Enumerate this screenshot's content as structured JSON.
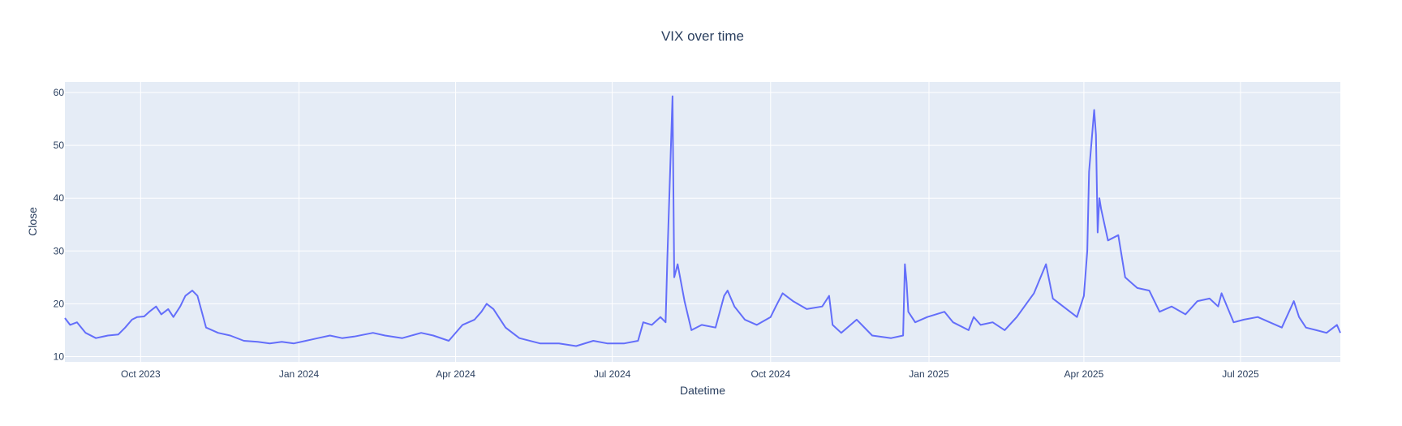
{
  "chart_data": {
    "type": "line",
    "title": "VIX over time",
    "xlabel": "Datetime",
    "ylabel": "Close",
    "x_range": [
      "2023-08-18",
      "2025-08-28"
    ],
    "ylim": [
      9,
      62
    ],
    "x_ticks": [
      {
        "date": "2023-10-01",
        "label": "Oct 2023"
      },
      {
        "date": "2024-01-01",
        "label": "Jan 2024"
      },
      {
        "date": "2024-04-01",
        "label": "Apr 2024"
      },
      {
        "date": "2024-07-01",
        "label": "Jul 2024"
      },
      {
        "date": "2024-10-01",
        "label": "Oct 2024"
      },
      {
        "date": "2025-01-01",
        "label": "Jan 2025"
      },
      {
        "date": "2025-04-01",
        "label": "Apr 2025"
      },
      {
        "date": "2025-07-01",
        "label": "Jul 2025"
      }
    ],
    "y_ticks": [
      10,
      20,
      30,
      40,
      50,
      60
    ],
    "grid": true,
    "legend": "none",
    "colors": {
      "line": "#636efa",
      "plot_bg": "#e5ecf6",
      "grid": "#ffffff",
      "text": "#2a3f5f"
    },
    "series": [
      {
        "x": [
          "2023-08-18",
          "2023-08-21",
          "2023-08-25",
          "2023-08-30",
          "2023-09-05",
          "2023-09-12",
          "2023-09-18",
          "2023-09-22",
          "2023-09-26",
          "2023-09-29",
          "2023-10-03",
          "2023-10-06",
          "2023-10-10",
          "2023-10-13",
          "2023-10-17",
          "2023-10-20",
          "2023-10-24",
          "2023-10-27",
          "2023-10-31",
          "2023-11-03",
          "2023-11-08",
          "2023-11-15",
          "2023-11-22",
          "2023-11-30",
          "2023-12-08",
          "2023-12-15",
          "2023-12-22",
          "2023-12-29",
          "2024-01-05",
          "2024-01-12",
          "2024-01-19",
          "2024-01-26",
          "2024-02-02",
          "2024-02-13",
          "2024-02-20",
          "2024-03-01",
          "2024-03-12",
          "2024-03-19",
          "2024-03-28",
          "2024-04-05",
          "2024-04-12",
          "2024-04-16",
          "2024-04-19",
          "2024-04-23",
          "2024-04-30",
          "2024-05-08",
          "2024-05-20",
          "2024-05-31",
          "2024-06-10",
          "2024-06-20",
          "2024-06-28",
          "2024-07-08",
          "2024-07-16",
          "2024-07-19",
          "2024-07-24",
          "2024-07-29",
          "2024-08-01",
          "2024-08-02",
          "2024-08-05",
          "2024-08-06",
          "2024-08-08",
          "2024-08-12",
          "2024-08-16",
          "2024-08-22",
          "2024-08-30",
          "2024-09-04",
          "2024-09-06",
          "2024-09-10",
          "2024-09-16",
          "2024-09-23",
          "2024-10-01",
          "2024-10-04",
          "2024-10-08",
          "2024-10-14",
          "2024-10-22",
          "2024-10-31",
          "2024-11-04",
          "2024-11-06",
          "2024-11-11",
          "2024-11-20",
          "2024-11-29",
          "2024-12-10",
          "2024-12-17",
          "2024-12-18",
          "2024-12-19",
          "2024-12-20",
          "2024-12-24",
          "2024-12-31",
          "2025-01-10",
          "2025-01-15",
          "2025-01-24",
          "2025-01-27",
          "2025-01-31",
          "2025-02-07",
          "2025-02-14",
          "2025-02-21",
          "2025-03-03",
          "2025-03-10",
          "2025-03-14",
          "2025-03-20",
          "2025-03-28",
          "2025-04-01",
          "2025-04-03",
          "2025-04-04",
          "2025-04-07",
          "2025-04-08",
          "2025-04-09",
          "2025-04-10",
          "2025-04-11",
          "2025-04-15",
          "2025-04-21",
          "2025-04-25",
          "2025-05-02",
          "2025-05-09",
          "2025-05-15",
          "2025-05-22",
          "2025-05-30",
          "2025-06-06",
          "2025-06-13",
          "2025-06-18",
          "2025-06-20",
          "2025-06-27",
          "2025-07-03",
          "2025-07-11",
          "2025-07-18",
          "2025-07-25",
          "2025-08-01",
          "2025-08-04",
          "2025-08-08",
          "2025-08-14",
          "2025-08-20",
          "2025-08-26",
          "2025-08-28"
        ],
        "y": [
          17.3,
          16.0,
          16.5,
          14.5,
          13.5,
          14.0,
          14.2,
          15.5,
          17.0,
          17.5,
          17.6,
          18.5,
          19.5,
          18.0,
          19.0,
          17.5,
          19.5,
          21.5,
          22.5,
          21.5,
          15.5,
          14.5,
          14.0,
          13.0,
          12.8,
          12.5,
          12.8,
          12.5,
          13.0,
          13.5,
          14.0,
          13.5,
          13.8,
          14.5,
          14.0,
          13.5,
          14.5,
          14.0,
          13.0,
          16.0,
          17.0,
          18.5,
          20.0,
          19.0,
          15.5,
          13.5,
          12.5,
          12.5,
          12.0,
          13.0,
          12.5,
          12.5,
          13.0,
          16.5,
          16.0,
          17.5,
          16.5,
          28.5,
          59.3,
          25.0,
          27.5,
          20.5,
          15.0,
          16.0,
          15.5,
          21.5,
          22.5,
          19.5,
          17.0,
          16.0,
          17.5,
          19.5,
          22.0,
          20.5,
          19.0,
          19.5,
          21.5,
          16.0,
          14.5,
          17.0,
          14.0,
          13.5,
          14.0,
          27.5,
          24.0,
          18.5,
          16.5,
          17.5,
          18.5,
          16.5,
          15.0,
          17.5,
          16.0,
          16.5,
          15.0,
          17.5,
          22.0,
          27.5,
          21.0,
          19.5,
          17.5,
          21.5,
          30.0,
          45.0,
          56.7,
          52.0,
          33.5,
          40.0,
          38.0,
          32.0,
          33.0,
          25.0,
          23.0,
          22.5,
          18.5,
          19.5,
          18.0,
          20.5,
          21.0,
          19.5,
          22.0,
          16.5,
          17.0,
          17.5,
          16.5,
          15.5,
          20.5,
          17.5,
          15.5,
          15.0,
          14.5,
          16.0,
          14.5
        ]
      }
    ]
  }
}
